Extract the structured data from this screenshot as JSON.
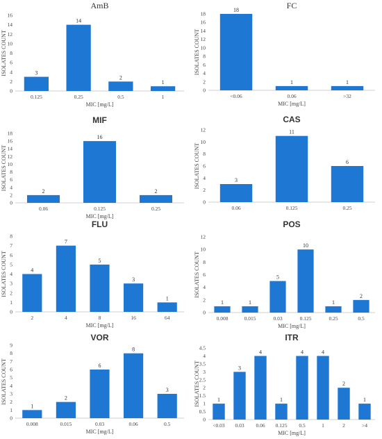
{
  "chart_data": [
    {
      "type": "bar",
      "title": "AmB",
      "categories": [
        "0.125",
        "0.25",
        "0.5",
        "1"
      ],
      "values": [
        3,
        14,
        2,
        1
      ],
      "xlabel": "MIC [mg/L]",
      "ylabel": "ISOLATES COUNT",
      "ylim": [
        0,
        16
      ],
      "yticks": [
        0,
        2,
        4,
        6,
        8,
        10,
        12,
        14,
        16
      ],
      "grid": false,
      "color": "#1f77d4"
    },
    {
      "type": "bar",
      "title": "FC",
      "categories": [
        "<0.06",
        "0.06",
        ">32"
      ],
      "values": [
        18,
        1,
        1
      ],
      "xlabel": "MIC [mg/L]",
      "ylabel": "ISOLATES COUNT",
      "ylim": [
        0,
        18
      ],
      "yticks": [
        0,
        2,
        4,
        6,
        8,
        10,
        12,
        14,
        16,
        18
      ],
      "grid": false,
      "color": "#1f77d4"
    },
    {
      "type": "bar",
      "title": "MIF",
      "categories": [
        "0.06",
        "0.125",
        "0.25"
      ],
      "values": [
        2,
        16,
        2
      ],
      "xlabel": "MIC [mg/L]",
      "ylabel": "ISOLATES COUNT",
      "ylim": [
        0,
        18
      ],
      "yticks": [
        0,
        2,
        4,
        6,
        8,
        10,
        12,
        14,
        16,
        18
      ],
      "grid": false,
      "color": "#1f77d4"
    },
    {
      "type": "bar",
      "title": "CAS",
      "categories": [
        "0.06",
        "0.125",
        "0.25"
      ],
      "values": [
        3,
        11,
        6
      ],
      "xlabel": "",
      "ylabel": "ISOLATES COUNT",
      "ylim": [
        0,
        12
      ],
      "yticks": [
        0,
        2,
        4,
        6,
        8,
        10,
        12
      ],
      "grid": false,
      "color": "#1f77d4"
    },
    {
      "type": "bar",
      "title": "FLU",
      "categories": [
        "2",
        "4",
        "8",
        "16",
        "64"
      ],
      "values": [
        4,
        7,
        5,
        3,
        1
      ],
      "xlabel": "MIC [mg/L]",
      "ylabel": "ISOLATES COUNT",
      "ylim": [
        0,
        8
      ],
      "yticks": [
        0,
        1,
        2,
        3,
        4,
        5,
        6,
        7,
        8
      ],
      "grid": false,
      "color": "#1f77d4"
    },
    {
      "type": "bar",
      "title": "POS",
      "categories": [
        "0.008",
        "0.015",
        "0.03",
        "0.125",
        "0.25",
        "0.5"
      ],
      "values": [
        1,
        1,
        5,
        10,
        1,
        2
      ],
      "xlabel": "MIC [mg/L]",
      "ylabel": "ISOLATES COUNT",
      "ylim": [
        0,
        12
      ],
      "yticks": [
        0,
        2,
        4,
        6,
        8,
        10,
        12
      ],
      "grid": false,
      "color": "#1f77d4"
    },
    {
      "type": "bar",
      "title": "VOR",
      "categories": [
        "0.008",
        "0.015",
        "0.03",
        "0.06",
        "0.5"
      ],
      "values": [
        1,
        2,
        6,
        8,
        3
      ],
      "xlabel": "MIC [mg/L]",
      "ylabel": "ISOLATES COUNT",
      "ylim": [
        0,
        9
      ],
      "yticks": [
        0,
        1,
        2,
        3,
        4,
        5,
        6,
        7,
        8,
        9
      ],
      "grid": false,
      "color": "#1f77d4"
    },
    {
      "type": "bar",
      "title": "ITR",
      "categories": [
        "<0.03",
        "0.03",
        "0.06",
        "0.125",
        "0.5",
        "1",
        "2",
        ">4"
      ],
      "values": [
        1,
        3,
        4,
        1,
        4,
        4,
        2,
        1
      ],
      "xlabel": "MIC [mg/L]",
      "ylabel": "ISOLATES COUNT",
      "ylim": [
        0,
        4.5
      ],
      "yticks": [
        0,
        0.5,
        1,
        1.5,
        2,
        2.5,
        3,
        3.5,
        4,
        4.5
      ],
      "grid": false,
      "color": "#1f77d4"
    }
  ]
}
